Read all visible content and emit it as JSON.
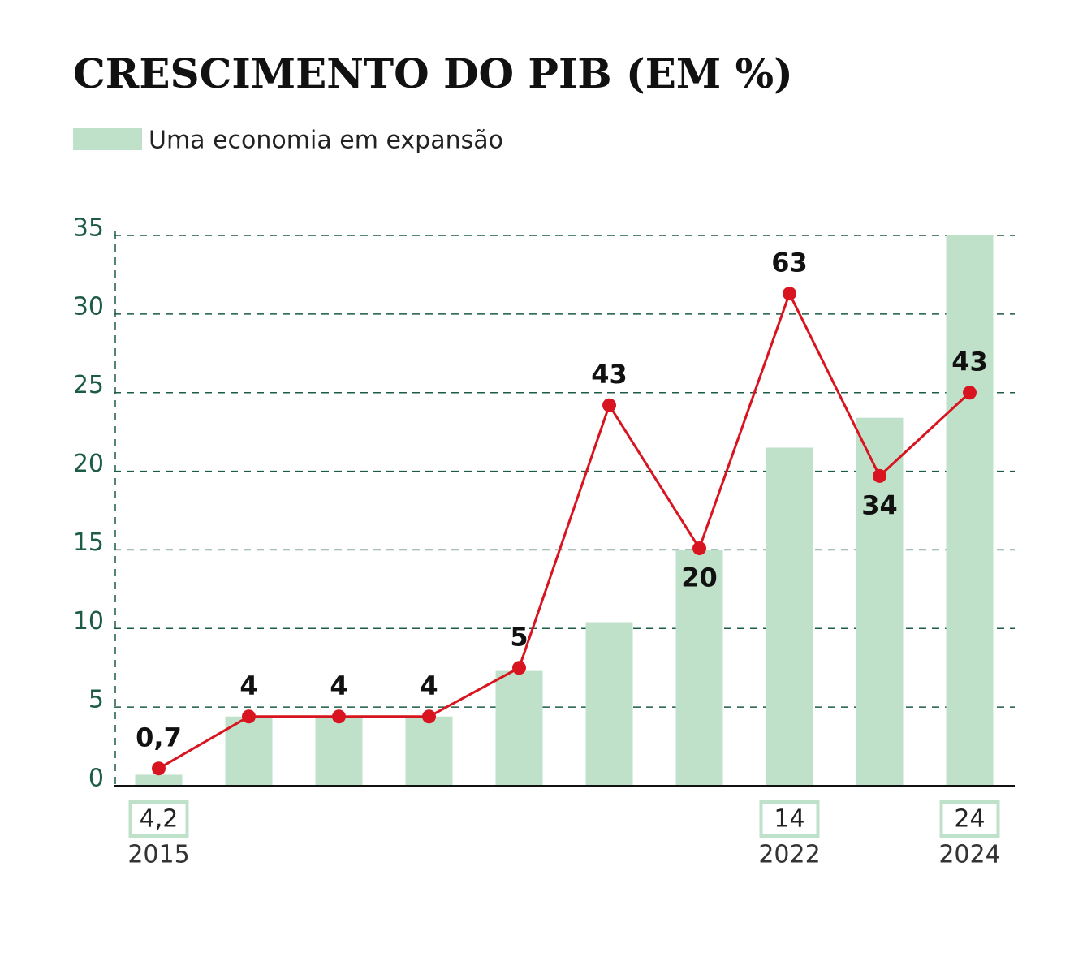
{
  "chart_data": {
    "type": "bar",
    "title": "CRESCIMENTO DO PIB (EM %)",
    "categories": [
      "2015",
      null,
      null,
      null,
      null,
      null,
      null,
      "2022",
      null,
      "2024"
    ],
    "series": [
      {
        "name": "Uma economia em expansão",
        "type": "bar",
        "color": "#bfe0c9",
        "values": [
          0.7,
          4.4,
          4.4,
          4.4,
          7.3,
          10.4,
          15.0,
          21.5,
          23.4,
          35.0
        ],
        "box_labels": [
          "4,2",
          null,
          null,
          null,
          null,
          null,
          null,
          "14",
          null,
          "24"
        ]
      },
      {
        "type": "line",
        "color": "#d7141f",
        "values": [
          1.1,
          4.4,
          4.4,
          4.4,
          7.5,
          24.2,
          15.1,
          31.3,
          19.7,
          25.0
        ],
        "point_labels": [
          "0,7",
          "4",
          "4",
          "4",
          "5",
          "43",
          "20",
          "63",
          "34",
          "43"
        ]
      }
    ],
    "ylim": [
      0,
      35
    ],
    "yticks": [
      0,
      5,
      10,
      15,
      20,
      25,
      30,
      35
    ],
    "grid": true
  }
}
